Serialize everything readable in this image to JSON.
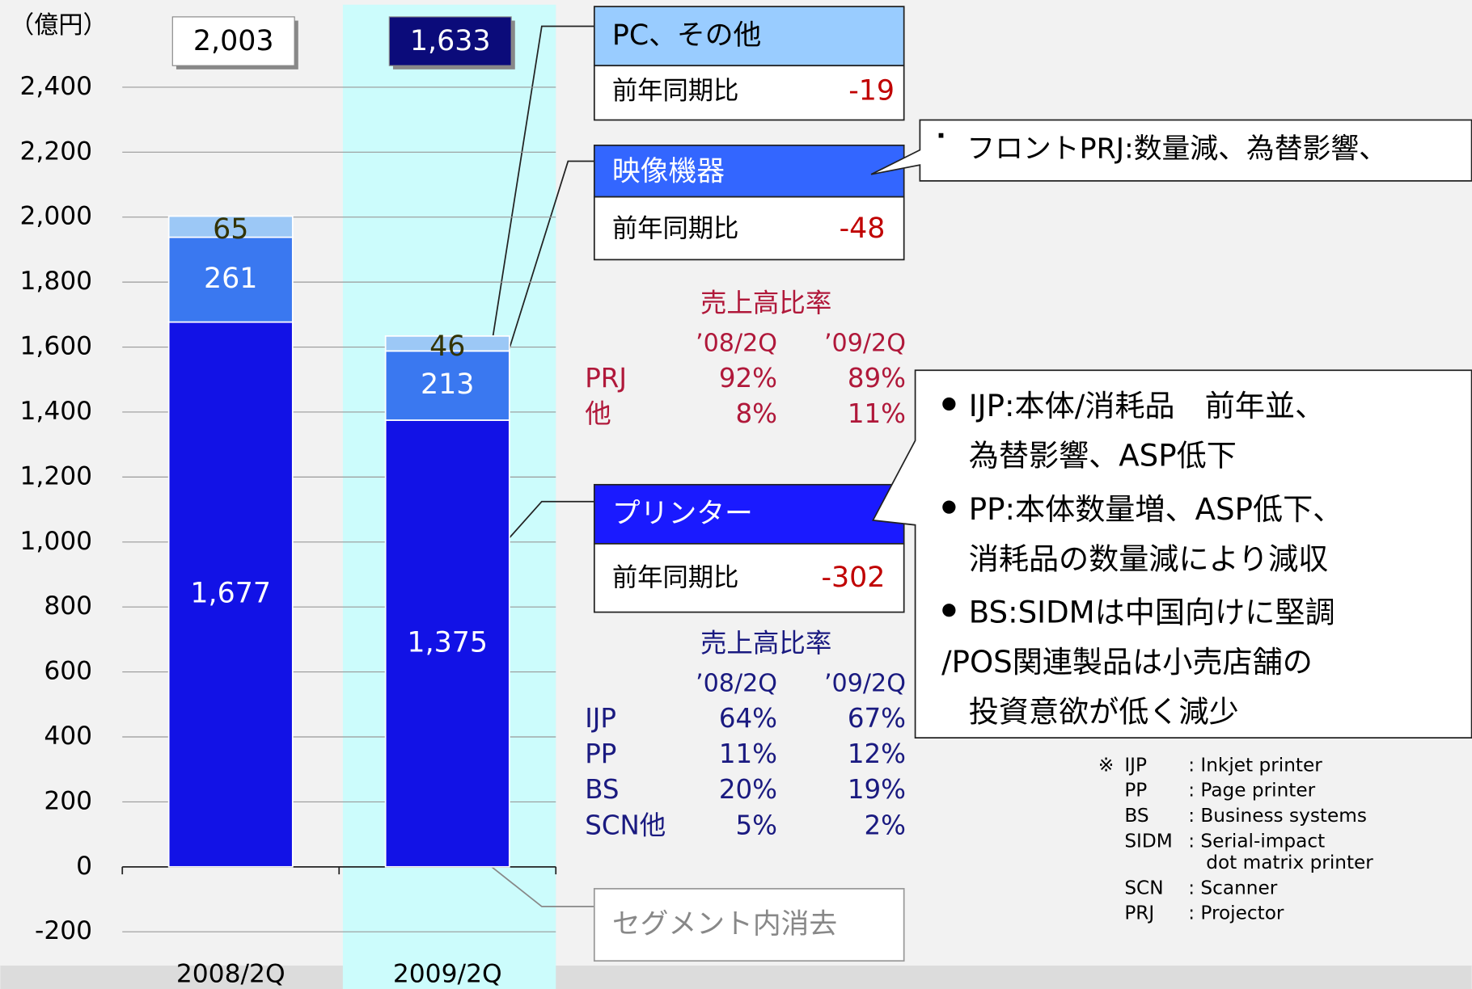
{
  "chart_data": {
    "type": "bar",
    "stacked": true,
    "y_label": "（億円）",
    "categories": [
      "2008/2Q",
      "2009/2Q"
    ],
    "series": [
      {
        "name": "プリンター",
        "color": "#1212e6",
        "values": [
          1677,
          1375
        ],
        "value_labels": [
          "1,677",
          "1,375"
        ]
      },
      {
        "name": "映像機器",
        "color": "#3a78f0",
        "values": [
          261,
          213
        ]
      },
      {
        "name": "PC、その他",
        "color": "#9cc8f6",
        "values": [
          65,
          46
        ]
      }
    ],
    "totals": [
      2003,
      1633
    ],
    "total_labels": [
      "2,003",
      "1,633"
    ],
    "ylim": [
      -200,
      2400
    ],
    "yticks": [
      -200,
      0,
      200,
      400,
      600,
      800,
      {
        "value": 1000,
        "label": "1,000"
      },
      {
        "value": 1200,
        "label": "1,200"
      },
      {
        "value": 1400,
        "label": "1,400"
      },
      {
        "value": 1600,
        "label": "1,600"
      },
      {
        "value": 1800,
        "label": "1,800"
      },
      {
        "value": 2000,
        "label": "2,000"
      },
      {
        "value": 2200,
        "label": "2,200"
      },
      {
        "value": 2400,
        "label": "2,400"
      }
    ],
    "grid": true
  },
  "callouts": [
    {
      "label": "前年同期比",
      "change": -19
    },
    {
      "label": "前年同期比",
      "change": -48
    },
    {
      "label": "前年同期比",
      "change": -302
    }
  ],
  "elimination": "セグメント内消去",
  "ratio_tables": [
    {
      "title": "売上高比率",
      "columns": [
        "’08/2Q",
        "’09/2Q"
      ],
      "rows": [
        [
          "PRJ",
          "92%",
          "89%"
        ],
        [
          "他",
          "8%",
          "11%"
        ]
      ]
    },
    {
      "title": "売上高比率",
      "columns": [
        "’08/2Q",
        "’09/2Q"
      ],
      "rows": [
        [
          "IJP",
          "64%",
          "67%"
        ],
        [
          "PP",
          "11%",
          "12%"
        ],
        [
          "BS",
          "20%",
          "19%"
        ],
        [
          "SCN他",
          "5%",
          "2%"
        ]
      ]
    }
  ],
  "note_top": "フロントPRJ:数量減、為替影響、",
  "notes": [
    [
      "IJP:本体/消耗品　前年並、",
      "為替影響、ASP低下"
    ],
    [
      "PP:本体数量増、ASP低下、",
      "消耗品の数量減により減収"
    ],
    [
      "BS:SIDMは中国向けに堅調",
      "/POS関連製品は小売店舗の",
      "投資意欲が低く減少"
    ]
  ],
  "glossary_mark": "※",
  "glossary": [
    [
      "IJP",
      ": Inkjet printer"
    ],
    [
      "PP",
      ": Page printer"
    ],
    [
      "BS",
      ": Business systems"
    ],
    [
      "SIDM",
      ": Serial-impact",
      "dot matrix printer"
    ],
    [
      "SCN",
      ": Scanner"
    ],
    [
      "PRJ",
      ": Projector"
    ]
  ]
}
